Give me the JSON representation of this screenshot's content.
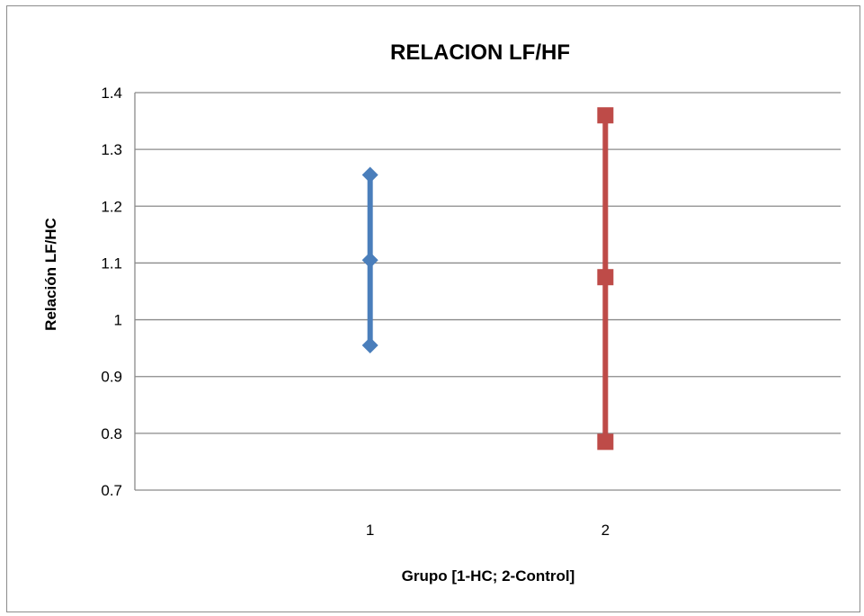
{
  "chart_data": {
    "type": "scatter",
    "title": "RELACION LF/HF",
    "xlabel": "Grupo [1-HC; 2-Control]",
    "ylabel": "Relación LF/HC",
    "categories": [
      "1",
      "2"
    ],
    "ylim": [
      0.7,
      1.4
    ],
    "yticks": [
      "1.4",
      "1.3",
      "1.2",
      "1.1",
      "1",
      "0.9",
      "0.8",
      "0.7"
    ],
    "grid": true,
    "series": [
      {
        "category": "1",
        "color": "#4a7ebb",
        "marker": "diamond",
        "low": 0.955,
        "mean": 1.105,
        "high": 1.255
      },
      {
        "category": "2",
        "color": "#be4b48",
        "marker": "square",
        "low": 0.785,
        "mean": 1.075,
        "high": 1.36
      }
    ]
  }
}
